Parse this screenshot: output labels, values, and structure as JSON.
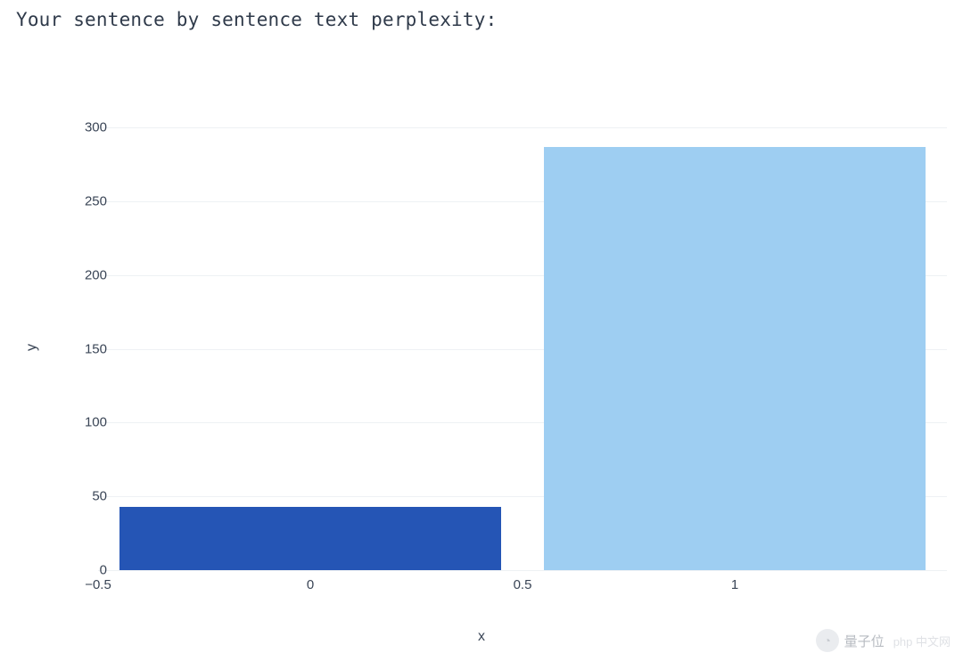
{
  "title": "Your sentence by sentence text perplexity:",
  "chart": {
    "type": "bar",
    "background_color": "#ffffff",
    "grid_color": "#eef1f4",
    "text_color": "#3a4556",
    "title_fontsize": 21,
    "label_fontsize": 16,
    "tick_fontsize": 15,
    "xlabel": "x",
    "ylabel": "y",
    "xlim": [
      -0.5,
      1.5
    ],
    "ylim": [
      0,
      320
    ],
    "yticks": [
      0,
      50,
      100,
      150,
      200,
      250,
      300
    ],
    "xticks": [
      -0.5,
      0,
      0.5,
      1
    ],
    "bar_width": 0.9,
    "series": [
      {
        "x": 0,
        "y": 43,
        "color": "#2555b5"
      },
      {
        "x": 1,
        "y": 287,
        "color": "#9ecef2"
      }
    ]
  },
  "watermark": {
    "icon": "◔",
    "text": "量子位",
    "sub": "php 中文网"
  }
}
